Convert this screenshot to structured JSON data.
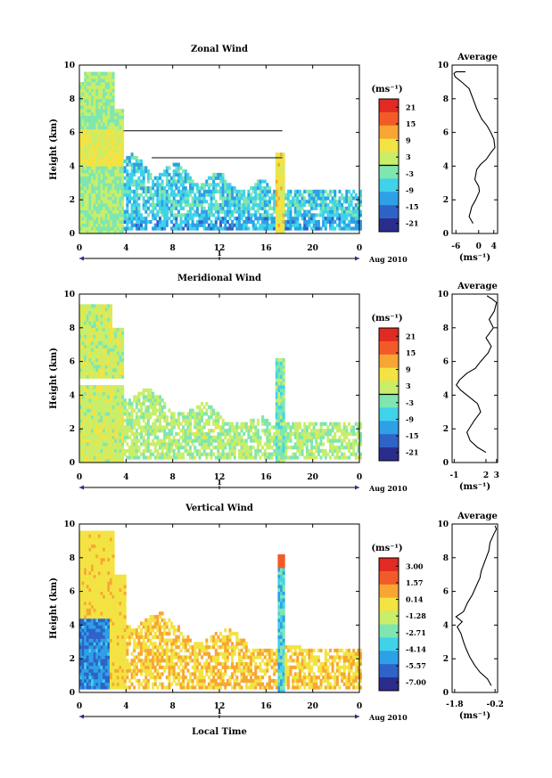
{
  "chart_data": [
    {
      "type": "heatmap",
      "title": "Zonal Wind",
      "ylabel": "Height (km)",
      "xlabel": "",
      "x_ticks": [
        "0",
        "4",
        "8",
        "12",
        "16",
        "20",
        "0"
      ],
      "y_ticks": [
        "0",
        "2",
        "4",
        "6",
        "8",
        "10"
      ],
      "xlim": [
        0,
        24
      ],
      "ylim": [
        0,
        10
      ],
      "day_label": "1",
      "date_label": "Aug 2010",
      "colorbar": {
        "unit": "(ms⁻¹)",
        "ticks": [
          "21",
          "15",
          "9",
          "3",
          "-3",
          "-9",
          "-15",
          "-21"
        ],
        "range": [
          -24,
          24
        ]
      },
      "profile": {
        "title": "Average",
        "x_ticks": [
          "-6",
          "0",
          "4"
        ],
        "xlabel": "(ms⁻¹)",
        "xlim": [
          -7,
          5
        ],
        "points": [
          [
            -1.5,
            0.6
          ],
          [
            -2.5,
            1.0
          ],
          [
            -1.8,
            1.6
          ],
          [
            -0.8,
            2.0
          ],
          [
            0.2,
            2.5
          ],
          [
            0.0,
            2.8
          ],
          [
            -1.0,
            3.2
          ],
          [
            -0.5,
            3.8
          ],
          [
            0.5,
            4.1
          ],
          [
            2.0,
            4.4
          ],
          [
            3.2,
            4.8
          ],
          [
            4.3,
            5.1
          ],
          [
            4.0,
            5.6
          ],
          [
            3.2,
            6.0
          ],
          [
            2.2,
            6.4
          ],
          [
            0.8,
            6.8
          ],
          [
            -0.5,
            7.4
          ],
          [
            -1.5,
            8.0
          ],
          [
            -2.5,
            8.6
          ],
          [
            -4.5,
            9.0
          ],
          [
            -6.2,
            9.3
          ],
          [
            -6.5,
            9.5
          ],
          [
            -6.0,
            9.6
          ],
          [
            -3.5,
            9.6
          ]
        ]
      }
    },
    {
      "type": "heatmap",
      "title": "Meridional Wind",
      "ylabel": "Height (km)",
      "xlabel": "",
      "x_ticks": [
        "0",
        "4",
        "8",
        "12",
        "16",
        "20",
        "0"
      ],
      "y_ticks": [
        "0",
        "2",
        "4",
        "6",
        "8",
        "10"
      ],
      "xlim": [
        0,
        24
      ],
      "ylim": [
        0,
        10
      ],
      "day_label": "1",
      "date_label": "Aug 2010",
      "colorbar": {
        "unit": "(ms⁻¹)",
        "ticks": [
          "21",
          "15",
          "9",
          "3",
          "-3",
          "-9",
          "-15",
          "-21"
        ],
        "range": [
          -24,
          24
        ]
      },
      "profile": {
        "title": "Average",
        "x_ticks": [
          "-1",
          "2",
          "3"
        ],
        "xlabel": "(ms⁻¹)",
        "xlim": [
          -1.2,
          3.1
        ],
        "points": [
          [
            2.0,
            0.6
          ],
          [
            1.2,
            0.9
          ],
          [
            0.5,
            1.3
          ],
          [
            0.2,
            1.8
          ],
          [
            0.9,
            2.5
          ],
          [
            1.5,
            3.0
          ],
          [
            1.2,
            3.5
          ],
          [
            0.4,
            3.9
          ],
          [
            -0.4,
            4.3
          ],
          [
            -0.8,
            4.6
          ],
          [
            -0.5,
            4.9
          ],
          [
            0.2,
            5.3
          ],
          [
            1.0,
            5.6
          ],
          [
            1.5,
            6.0
          ],
          [
            2.2,
            6.5
          ],
          [
            2.5,
            6.9
          ],
          [
            2.0,
            7.4
          ],
          [
            2.7,
            8.0
          ],
          [
            2.3,
            8.5
          ],
          [
            2.8,
            9.0
          ],
          [
            3.0,
            9.5
          ],
          [
            2.6,
            9.7
          ],
          [
            2.1,
            9.9
          ]
        ]
      }
    },
    {
      "type": "heatmap",
      "title": "Vertical Wind",
      "ylabel": "Height (km)",
      "xlabel": "Local Time",
      "x_ticks": [
        "0",
        "4",
        "8",
        "12",
        "16",
        "20",
        "0"
      ],
      "y_ticks": [
        "0",
        "2",
        "4",
        "6",
        "8",
        "10"
      ],
      "xlim": [
        0,
        24
      ],
      "ylim": [
        0,
        10
      ],
      "day_label": "1",
      "date_label": "Aug 2010",
      "colorbar": {
        "unit": "(ms⁻¹)",
        "ticks": [
          "3.00",
          "1.57",
          "0.14",
          "-1.28",
          "-2.71",
          "-4.14",
          "-5.57",
          "-7.00"
        ],
        "range": [
          -7.7,
          3.7
        ]
      },
      "profile": {
        "title": "Average",
        "x_ticks": [
          "-1.8",
          "-0.2"
        ],
        "xlabel": "(ms⁻¹)",
        "xlim": [
          -1.9,
          -0.1
        ],
        "points": [
          [
            -0.35,
            0.4
          ],
          [
            -0.5,
            0.8
          ],
          [
            -0.8,
            1.2
          ],
          [
            -1.0,
            1.6
          ],
          [
            -1.2,
            2.1
          ],
          [
            -1.35,
            2.6
          ],
          [
            -1.45,
            3.0
          ],
          [
            -1.55,
            3.5
          ],
          [
            -1.7,
            3.9
          ],
          [
            -1.5,
            4.2
          ],
          [
            -1.75,
            4.5
          ],
          [
            -1.45,
            4.8
          ],
          [
            -1.3,
            5.3
          ],
          [
            -1.1,
            5.8
          ],
          [
            -0.95,
            6.3
          ],
          [
            -0.8,
            6.8
          ],
          [
            -0.75,
            7.2
          ],
          [
            -0.6,
            7.8
          ],
          [
            -0.45,
            8.4
          ],
          [
            -0.4,
            8.9
          ],
          [
            -0.25,
            9.4
          ],
          [
            -0.15,
            9.7
          ],
          [
            -0.2,
            9.9
          ]
        ]
      }
    }
  ],
  "colors": {
    "scale": [
      "#2a2d8c",
      "#2f63c8",
      "#2ea0e6",
      "#3fd3ea",
      "#7fe6b0",
      "#c8ee6a",
      "#f3e343",
      "#f8a633",
      "#f25b28",
      "#e02a22"
    ]
  }
}
